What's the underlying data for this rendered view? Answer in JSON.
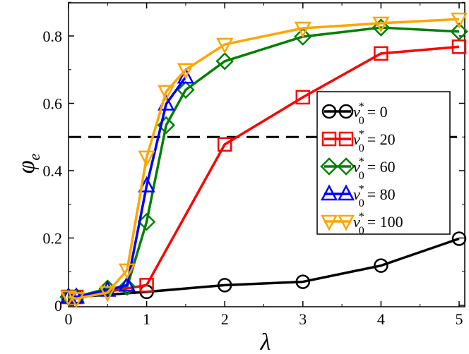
{
  "chart_data": {
    "type": "line",
    "xlabel": "λ",
    "ylabel": "φ",
    "ylabel_subscript": "e",
    "xlim": [
      0,
      5
    ],
    "ylim": [
      0,
      0.9
    ],
    "x_ticks": [
      "0",
      "1",
      "2",
      "3",
      "4",
      "5"
    ],
    "y_ticks": [
      "0",
      "0.2",
      "0.4",
      "0.6",
      "0.8"
    ],
    "legend_position": "right",
    "reference_line": {
      "y": 0.5,
      "style": "dashed",
      "color": "#000000"
    },
    "series": [
      {
        "name": "v₀* = 0",
        "legend_value": "0",
        "marker": "circle",
        "color": "#000000",
        "x": [
          0,
          0.1,
          1,
          2,
          3,
          4,
          5
        ],
        "y": [
          0.025,
          0.025,
          0.04,
          0.06,
          0.07,
          0.118,
          0.198
        ]
      },
      {
        "name": "v₀* = 20",
        "legend_value": "20",
        "marker": "square",
        "color": "#ff0000",
        "x": [
          0,
          0.1,
          1,
          2,
          3,
          4,
          5
        ],
        "y": [
          0.025,
          0.025,
          0.06,
          0.478,
          0.618,
          0.748,
          0.768
        ]
      },
      {
        "name": "v₀* = 60",
        "legend_value": "60",
        "marker": "diamond",
        "color": "#008000",
        "x": [
          0,
          0.1,
          0.5,
          0.75,
          1,
          1.25,
          1.5,
          2,
          3,
          4,
          5
        ],
        "y": [
          0.025,
          0.025,
          0.05,
          0.055,
          0.248,
          0.535,
          0.64,
          0.725,
          0.798,
          0.825,
          0.813
        ]
      },
      {
        "name": "v₀* = 80",
        "legend_value": "80",
        "marker": "triangle-up",
        "color": "#0000ff",
        "x": [
          0,
          0.1,
          0.5,
          0.75,
          1,
          1.25,
          1.5
        ],
        "y": [
          0.025,
          0.025,
          0.045,
          0.06,
          0.355,
          0.598,
          0.678
        ]
      },
      {
        "name": "v₀* = 100",
        "legend_value": "100",
        "marker": "triangle-down",
        "color": "#ffa500",
        "x": [
          0,
          0.1,
          0.5,
          0.75,
          1,
          1.25,
          1.5,
          2,
          3,
          4,
          5
        ],
        "y": [
          0.025,
          0.02,
          0.038,
          0.105,
          0.44,
          0.635,
          0.7,
          0.775,
          0.823,
          0.838,
          0.85
        ]
      }
    ]
  }
}
